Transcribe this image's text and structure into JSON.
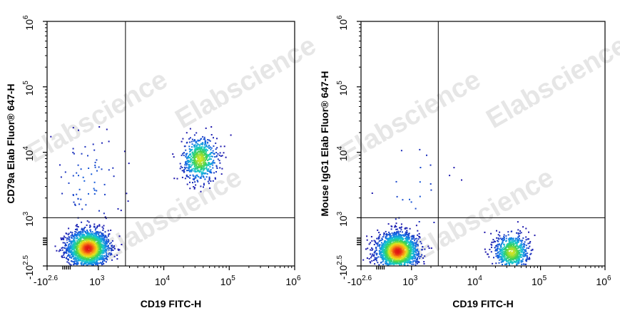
{
  "watermark": "Elabscience",
  "colors": {
    "axis": "#000000",
    "gate": "#000000",
    "watermark": "#e6e6e6"
  },
  "chart_data": [
    {
      "type": "scatter",
      "subtype": "flow-cytometry-density-dot-plot",
      "xlabel": "CD19 FITC-H",
      "ylabel": "CD79a Elab Fluor® 647-H",
      "x_ticks": [
        {
          "base": "-10",
          "exp": "2.6",
          "value": -398
        },
        {
          "base": "10",
          "exp": "3",
          "value": 1000
        },
        {
          "base": "10",
          "exp": "4",
          "value": 10000
        },
        {
          "base": "10",
          "exp": "5",
          "value": 100000
        },
        {
          "base": "10",
          "exp": "6",
          "value": 1000000
        }
      ],
      "y_ticks": [
        {
          "base": "-10",
          "exp": "2.5",
          "value": -316
        },
        {
          "base": "10",
          "exp": "3",
          "value": 1000
        },
        {
          "base": "10",
          "exp": "4",
          "value": 10000
        },
        {
          "base": "10",
          "exp": "5",
          "value": 100000
        },
        {
          "base": "10",
          "exp": "6",
          "value": 1000000
        }
      ],
      "xlim": [
        -398,
        1000000
      ],
      "ylim": [
        -316,
        1000000
      ],
      "scale": "biexponential",
      "quadrant_gate": {
        "x": 2600,
        "y": 1000
      },
      "populations": [
        {
          "x": 700,
          "y": 180,
          "weight": 0.72
        },
        {
          "x": 35000,
          "y": 8000,
          "weight": 0.25
        },
        {
          "x": 700,
          "y": 3500,
          "weight": 0.03
        }
      ]
    },
    {
      "type": "scatter",
      "subtype": "flow-cytometry-density-dot-plot",
      "xlabel": "CD19 FITC-H",
      "ylabel": "Mouse IgG1 Elab Fluor® 647-H",
      "x_ticks": [
        {
          "base": "-10",
          "exp": "2.6",
          "value": -398
        },
        {
          "base": "10",
          "exp": "3",
          "value": 1000
        },
        {
          "base": "10",
          "exp": "4",
          "value": 10000
        },
        {
          "base": "10",
          "exp": "5",
          "value": 100000
        },
        {
          "base": "10",
          "exp": "6",
          "value": 1000000
        }
      ],
      "y_ticks": [
        {
          "base": "-10",
          "exp": "2.5",
          "value": -316
        },
        {
          "base": "10",
          "exp": "3",
          "value": 1000
        },
        {
          "base": "10",
          "exp": "4",
          "value": 10000
        },
        {
          "base": "10",
          "exp": "5",
          "value": 100000
        },
        {
          "base": "10",
          "exp": "6",
          "value": 1000000
        }
      ],
      "xlim": [
        -398,
        1000000
      ],
      "ylim": [
        -316,
        1000000
      ],
      "scale": "biexponential",
      "quadrant_gate": {
        "x": 2600,
        "y": 1000
      },
      "populations": [
        {
          "x": 600,
          "y": 100,
          "weight": 0.72
        },
        {
          "x": 35000,
          "y": 80,
          "weight": 0.27
        },
        {
          "x": 1000,
          "y": 3000,
          "weight": 0.01
        }
      ]
    }
  ]
}
